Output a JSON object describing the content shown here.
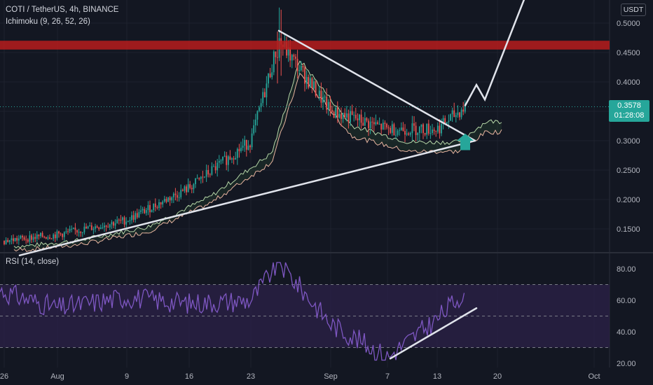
{
  "header": {
    "symbol_line": "COTI / TetherUS, 4h, BINANCE",
    "ichimoku_line": "Ichimoku (9, 26, 52, 26)",
    "rsi_line": "RSI (14, close)",
    "currency": "USDT"
  },
  "price_tag": {
    "price": "0.3578",
    "countdown": "01:28:08"
  },
  "colors": {
    "background": "#131722",
    "up": "#26a69a",
    "down": "#ef5350",
    "resistance_band": "#b71c1c",
    "drawing": "#e0e3eb",
    "rsi_line": "#7e57c2",
    "rsi_band": "#2a2146",
    "cloud_line_a": "#b5d6a7",
    "cloud_line_b": "#e8b4a0"
  },
  "chart_data": [
    {
      "type": "candlestick",
      "ylim": [
        0.1,
        0.52
      ],
      "yticks": [
        "0.5000",
        "0.4500",
        "0.4000",
        "0.3500",
        "0.3000",
        "0.2500",
        "0.2000",
        "0.1500"
      ],
      "xticks": [
        "26",
        "Aug",
        "9",
        "16",
        "23",
        "Sep",
        "7",
        "13",
        "20",
        "Oct"
      ],
      "close_series": [
        [
          "26",
          0.13
        ],
        [
          "Aug",
          0.14
        ],
        [
          "9",
          0.165
        ],
        [
          "16",
          0.22
        ],
        [
          "23",
          0.3
        ],
        [
          "24 Aug",
          0.47
        ],
        [
          "Sep",
          0.35
        ],
        [
          "7",
          0.32
        ],
        [
          "13",
          0.32
        ],
        [
          "16 Sep",
          0.3578
        ]
      ],
      "resistance_zone": [
        0.455,
        0.47
      ],
      "annotations": [
        "symmetrical triangle",
        "breakout arrow",
        "projected path"
      ]
    },
    {
      "type": "line",
      "name": "RSI",
      "ylim": [
        20,
        85
      ],
      "yticks": [
        "80.00",
        "60.00",
        "40.00",
        "20.00"
      ],
      "levels": [
        70,
        50,
        30
      ],
      "points": [
        [
          "26",
          65
        ],
        [
          "Aug",
          55
        ],
        [
          "9",
          62
        ],
        [
          "16",
          58
        ],
        [
          "23",
          60
        ],
        [
          "24 Aug",
          84
        ],
        [
          "Sep",
          45
        ],
        [
          "7",
          24
        ],
        [
          "13",
          48
        ],
        [
          "16 Sep",
          66
        ]
      ]
    }
  ]
}
